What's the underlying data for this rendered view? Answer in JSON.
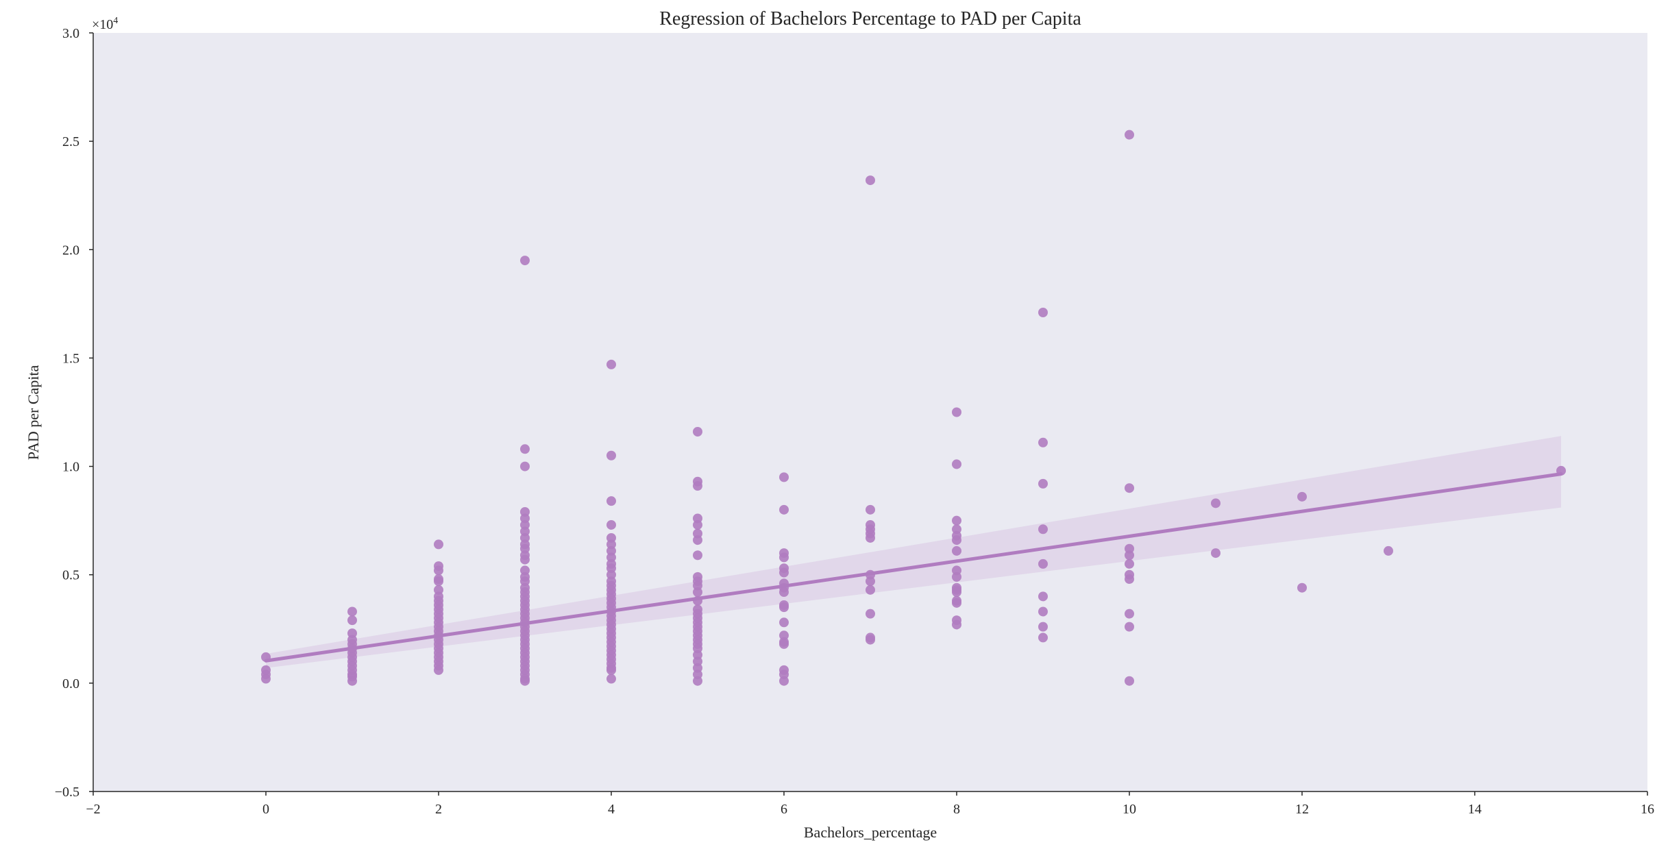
{
  "chart_data": {
    "type": "scatter",
    "title": "Regression of Bachelors Percentage to PAD per Capita",
    "xlabel": "Bachelors_percentage",
    "ylabel": "PAD per Capita",
    "y_multiplier": "×10",
    "y_exponent": "4",
    "xlim": [
      -2,
      16
    ],
    "ylim": [
      -0.5,
      3.0
    ],
    "xticks": [
      -2,
      0,
      2,
      4,
      6,
      8,
      10,
      12,
      14,
      16
    ],
    "xtick_labels": [
      "−2",
      "0",
      "2",
      "4",
      "6",
      "8",
      "10",
      "12",
      "14",
      "16"
    ],
    "yticks": [
      -0.5,
      0.0,
      0.5,
      1.0,
      1.5,
      2.0,
      2.5,
      3.0
    ],
    "ytick_labels": [
      "−0.5",
      "0.0",
      "0.5",
      "1.0",
      "1.5",
      "2.0",
      "2.5",
      "3.0"
    ],
    "grid": false,
    "background_color": "#eaeaf2",
    "point_color": "#b07cc0",
    "line_color": "#b07cc0",
    "band_color": "#d8c6e4",
    "series": [
      {
        "points": [
          [
            0,
            0.12
          ],
          [
            0,
            0.06
          ],
          [
            0,
            0.04
          ],
          [
            0,
            0.02
          ],
          [
            1,
            0.33
          ],
          [
            1,
            0.29
          ],
          [
            1,
            0.23
          ],
          [
            1,
            0.2
          ],
          [
            1,
            0.18
          ],
          [
            1,
            0.16
          ],
          [
            1,
            0.14
          ],
          [
            1,
            0.12
          ],
          [
            1,
            0.1
          ],
          [
            1,
            0.08
          ],
          [
            1,
            0.06
          ],
          [
            1,
            0.04
          ],
          [
            1,
            0.03
          ],
          [
            1,
            0.01
          ],
          [
            2,
            0.64
          ],
          [
            2,
            0.54
          ],
          [
            2,
            0.52
          ],
          [
            2,
            0.48
          ],
          [
            2,
            0.47
          ],
          [
            2,
            0.43
          ],
          [
            2,
            0.4
          ],
          [
            2,
            0.38
          ],
          [
            2,
            0.36
          ],
          [
            2,
            0.34
          ],
          [
            2,
            0.32
          ],
          [
            2,
            0.3
          ],
          [
            2,
            0.28
          ],
          [
            2,
            0.26
          ],
          [
            2,
            0.24
          ],
          [
            2,
            0.22
          ],
          [
            2,
            0.2
          ],
          [
            2,
            0.18
          ],
          [
            2,
            0.16
          ],
          [
            2,
            0.14
          ],
          [
            2,
            0.12
          ],
          [
            2,
            0.1
          ],
          [
            2,
            0.08
          ],
          [
            2,
            0.06
          ],
          [
            3,
            1.95
          ],
          [
            3,
            1.08
          ],
          [
            3,
            1.0
          ],
          [
            3,
            0.79
          ],
          [
            3,
            0.76
          ],
          [
            3,
            0.73
          ],
          [
            3,
            0.7
          ],
          [
            3,
            0.67
          ],
          [
            3,
            0.64
          ],
          [
            3,
            0.62
          ],
          [
            3,
            0.59
          ],
          [
            3,
            0.57
          ],
          [
            3,
            0.52
          ],
          [
            3,
            0.49
          ],
          [
            3,
            0.47
          ],
          [
            3,
            0.44
          ],
          [
            3,
            0.42
          ],
          [
            3,
            0.4
          ],
          [
            3,
            0.38
          ],
          [
            3,
            0.36
          ],
          [
            3,
            0.34
          ],
          [
            3,
            0.32
          ],
          [
            3,
            0.3
          ],
          [
            3,
            0.28
          ],
          [
            3,
            0.26
          ],
          [
            3,
            0.24
          ],
          [
            3,
            0.22
          ],
          [
            3,
            0.2
          ],
          [
            3,
            0.18
          ],
          [
            3,
            0.16
          ],
          [
            3,
            0.14
          ],
          [
            3,
            0.12
          ],
          [
            3,
            0.1
          ],
          [
            3,
            0.08
          ],
          [
            3,
            0.06
          ],
          [
            3,
            0.04
          ],
          [
            3,
            0.02
          ],
          [
            3,
            0.01
          ],
          [
            4,
            1.47
          ],
          [
            4,
            1.05
          ],
          [
            4,
            0.84
          ],
          [
            4,
            0.73
          ],
          [
            4,
            0.67
          ],
          [
            4,
            0.64
          ],
          [
            4,
            0.61
          ],
          [
            4,
            0.58
          ],
          [
            4,
            0.55
          ],
          [
            4,
            0.53
          ],
          [
            4,
            0.5
          ],
          [
            4,
            0.47
          ],
          [
            4,
            0.45
          ],
          [
            4,
            0.43
          ],
          [
            4,
            0.41
          ],
          [
            4,
            0.39
          ],
          [
            4,
            0.37
          ],
          [
            4,
            0.35
          ],
          [
            4,
            0.33
          ],
          [
            4,
            0.31
          ],
          [
            4,
            0.29
          ],
          [
            4,
            0.27
          ],
          [
            4,
            0.25
          ],
          [
            4,
            0.23
          ],
          [
            4,
            0.21
          ],
          [
            4,
            0.19
          ],
          [
            4,
            0.17
          ],
          [
            4,
            0.15
          ],
          [
            4,
            0.13
          ],
          [
            4,
            0.11
          ],
          [
            4,
            0.09
          ],
          [
            4,
            0.07
          ],
          [
            4,
            0.06
          ],
          [
            4,
            0.02
          ],
          [
            5,
            1.16
          ],
          [
            5,
            0.93
          ],
          [
            5,
            0.91
          ],
          [
            5,
            0.76
          ],
          [
            5,
            0.73
          ],
          [
            5,
            0.69
          ],
          [
            5,
            0.66
          ],
          [
            5,
            0.59
          ],
          [
            5,
            0.49
          ],
          [
            5,
            0.47
          ],
          [
            5,
            0.45
          ],
          [
            5,
            0.42
          ],
          [
            5,
            0.38
          ],
          [
            5,
            0.34
          ],
          [
            5,
            0.32
          ],
          [
            5,
            0.3
          ],
          [
            5,
            0.28
          ],
          [
            5,
            0.26
          ],
          [
            5,
            0.24
          ],
          [
            5,
            0.22
          ],
          [
            5,
            0.2
          ],
          [
            5,
            0.18
          ],
          [
            5,
            0.16
          ],
          [
            5,
            0.13
          ],
          [
            5,
            0.1
          ],
          [
            5,
            0.07
          ],
          [
            5,
            0.04
          ],
          [
            5,
            0.01
          ],
          [
            6,
            0.95
          ],
          [
            6,
            0.8
          ],
          [
            6,
            0.6
          ],
          [
            6,
            0.58
          ],
          [
            6,
            0.53
          ],
          [
            6,
            0.51
          ],
          [
            6,
            0.46
          ],
          [
            6,
            0.44
          ],
          [
            6,
            0.42
          ],
          [
            6,
            0.36
          ],
          [
            6,
            0.35
          ],
          [
            6,
            0.28
          ],
          [
            6,
            0.22
          ],
          [
            6,
            0.19
          ],
          [
            6,
            0.18
          ],
          [
            6,
            0.06
          ],
          [
            6,
            0.04
          ],
          [
            6,
            0.01
          ],
          [
            7,
            2.32
          ],
          [
            7,
            0.8
          ],
          [
            7,
            0.73
          ],
          [
            7,
            0.71
          ],
          [
            7,
            0.69
          ],
          [
            7,
            0.67
          ],
          [
            7,
            0.5
          ],
          [
            7,
            0.47
          ],
          [
            7,
            0.43
          ],
          [
            7,
            0.32
          ],
          [
            7,
            0.21
          ],
          [
            7,
            0.2
          ],
          [
            8,
            1.25
          ],
          [
            8,
            1.01
          ],
          [
            8,
            0.75
          ],
          [
            8,
            0.71
          ],
          [
            8,
            0.68
          ],
          [
            8,
            0.66
          ],
          [
            8,
            0.61
          ],
          [
            8,
            0.52
          ],
          [
            8,
            0.49
          ],
          [
            8,
            0.44
          ],
          [
            8,
            0.43
          ],
          [
            8,
            0.42
          ],
          [
            8,
            0.38
          ],
          [
            8,
            0.37
          ],
          [
            8,
            0.29
          ],
          [
            8,
            0.27
          ],
          [
            9,
            1.71
          ],
          [
            9,
            1.11
          ],
          [
            9,
            0.92
          ],
          [
            9,
            0.71
          ],
          [
            9,
            0.55
          ],
          [
            9,
            0.4
          ],
          [
            9,
            0.33
          ],
          [
            9,
            0.26
          ],
          [
            9,
            0.21
          ],
          [
            10,
            2.53
          ],
          [
            10,
            0.9
          ],
          [
            10,
            0.62
          ],
          [
            10,
            0.59
          ],
          [
            10,
            0.55
          ],
          [
            10,
            0.5
          ],
          [
            10,
            0.48
          ],
          [
            10,
            0.32
          ],
          [
            10,
            0.26
          ],
          [
            10,
            0.01
          ],
          [
            11,
            0.83
          ],
          [
            11,
            0.6
          ],
          [
            12,
            0.86
          ],
          [
            12,
            0.44
          ],
          [
            13,
            0.61
          ],
          [
            15,
            0.98
          ]
        ]
      }
    ],
    "regression": {
      "x": [
        0,
        15
      ],
      "y": [
        0.103,
        0.965
      ],
      "ci_lower": [
        0.07,
        0.81
      ],
      "ci_upper": [
        0.135,
        1.14
      ]
    }
  }
}
